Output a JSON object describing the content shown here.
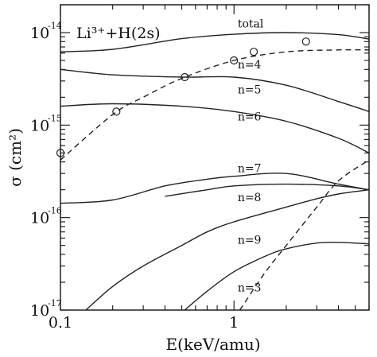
{
  "chart_data": {
    "type": "line",
    "title": "Li³⁺+H(2s)",
    "xlabel": "E(keV/amu)",
    "ylabel": "σ (cm²)",
    "xscale": "log",
    "yscale": "log",
    "xlim": [
      0.1,
      6
    ],
    "ylim": [
      1e-17,
      2e-14
    ],
    "grid": false,
    "x_ticks": [
      {
        "value": 0.1,
        "label": "0.1"
      },
      {
        "value": 1,
        "label": "1"
      }
    ],
    "y_ticks": [
      {
        "value": 1e-17,
        "mantissa": "10",
        "exponent": "-17"
      },
      {
        "value": 1e-16,
        "mantissa": "10",
        "exponent": "-16"
      },
      {
        "value": 1e-15,
        "mantissa": "10",
        "exponent": "-15"
      },
      {
        "value": 1e-14,
        "mantissa": "10",
        "exponent": "-14"
      }
    ],
    "series": [
      {
        "name": "total",
        "style": "solid",
        "label_x": 1.05,
        "label_y": 1.14e-14,
        "x": [
          0.1,
          0.2,
          0.5,
          1,
          2,
          4,
          6
        ],
        "y": [
          6.2e-15,
          6.6e-15,
          8.6e-15,
          9.6e-15,
          1e-14,
          9.5e-15,
          8.5e-15
        ]
      },
      {
        "name": "n=4",
        "style": "solid",
        "label_x": 1.05,
        "label_y": 4.1e-15,
        "x": [
          0.1,
          0.2,
          0.5,
          1,
          2,
          4,
          6
        ],
        "y": [
          4e-15,
          3.5e-15,
          3.3e-15,
          3.3e-15,
          2.7e-15,
          1.8e-15,
          1.4e-15
        ]
      },
      {
        "name": "n=5",
        "style": "solid",
        "label_x": 1.05,
        "label_y": 2.2e-15,
        "x": [
          0.1,
          0.2,
          0.5,
          1,
          2,
          4,
          6
        ],
        "y": [
          1.6e-15,
          1.7e-15,
          1.6e-15,
          1.4e-15,
          1.1e-15,
          7.2e-16,
          5e-16
        ]
      },
      {
        "name": "n=6",
        "style": "solid",
        "label_x": 1.05,
        "label_y": 1.12e-15,
        "x": [
          0.1,
          0.2,
          0.4,
          0.7,
          1,
          2,
          4,
          6
        ],
        "y": [
          1.43e-16,
          1.55e-16,
          2.2e-16,
          2.6e-16,
          2.8e-16,
          3e-16,
          2.3e-16,
          2e-16
        ]
      },
      {
        "name": "n=7",
        "style": "solid",
        "label_x": 1.05,
        "label_y": 3.1e-16,
        "x": [
          0.4,
          0.7,
          1,
          2,
          4,
          6
        ],
        "y": [
          1.7e-16,
          2e-16,
          2.2e-16,
          2.3e-16,
          2.2e-16,
          2e-16
        ]
      },
      {
        "name": "n=8",
        "style": "solid",
        "label_x": 1.05,
        "label_y": 1.5e-16,
        "x": [
          0.14,
          0.2,
          0.3,
          0.5,
          0.7,
          1,
          2,
          3,
          4,
          6
        ],
        "y": [
          1e-17,
          1.8e-17,
          3e-17,
          5e-17,
          7e-17,
          9e-17,
          1.3e-16,
          1.6e-16,
          1.8e-16,
          2e-16
        ]
      },
      {
        "name": "n=9",
        "style": "solid",
        "label_x": 1.05,
        "label_y": 5.2e-17,
        "x": [
          0.52,
          0.7,
          1,
          1.5,
          2,
          3,
          4,
          6
        ],
        "y": [
          1e-17,
          1.6e-17,
          2.6e-17,
          3.8e-17,
          4.6e-17,
          5.3e-17,
          5.4e-17,
          5.2e-17
        ]
      },
      {
        "name": "n=3",
        "style": "dashed",
        "label_x": 1.05,
        "label_y": 1.6e-17,
        "x": [
          0.1,
          0.2,
          0.3,
          0.5,
          1,
          2,
          4,
          6
        ],
        "y": [
          4.2e-16,
          1.3e-15,
          2e-15,
          3.2e-15,
          5e-15,
          6.2e-15,
          6.5e-15,
          6.5e-15
        ]
      },
      {
        "name": "n=3 (rising)",
        "style": "dashed",
        "label_x": null,
        "label_y": null,
        "x": [
          1.08,
          1.5,
          2,
          3,
          4,
          6
        ],
        "y": [
          1e-17,
          2.5e-17,
          5e-17,
          1.3e-16,
          2.5e-16,
          4.2e-16
        ]
      }
    ],
    "experimental_points": {
      "marker": "circle",
      "x": [
        0.1,
        0.21,
        0.52,
        1.0,
        1.3,
        2.6
      ],
      "y": [
        5e-16,
        1.4e-15,
        3.3e-15,
        5e-15,
        6.2e-15,
        8e-15
      ]
    }
  }
}
